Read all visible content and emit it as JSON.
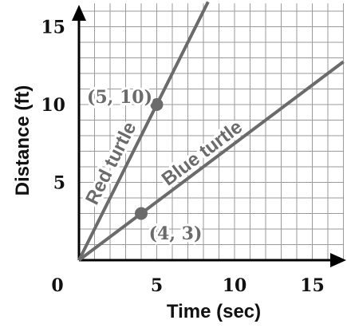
{
  "chart_data": {
    "type": "line",
    "xlabel": "Time (sec)",
    "ylabel": "Distance (ft)",
    "xlim": [
      0,
      17
    ],
    "ylim": [
      0,
      16.5
    ],
    "x_ticks": [
      0,
      5,
      10,
      15
    ],
    "x_tick_labels": [
      "0",
      "5",
      "10",
      "15"
    ],
    "y_ticks": [
      5,
      10,
      15
    ],
    "y_tick_labels": [
      "5",
      "10",
      "15"
    ],
    "grid": true,
    "grid_step": 1,
    "series": [
      {
        "name": "Red turtle",
        "x": [
          0,
          8.3
        ],
        "y": [
          0,
          16.6
        ],
        "color": "#6b6b6b"
      },
      {
        "name": "Blue turtle",
        "x": [
          0,
          17
        ],
        "y": [
          0,
          12.75
        ],
        "color": "#6b6b6b"
      }
    ],
    "points": [
      {
        "x": 5,
        "y": 10,
        "label": "(5, 10)"
      },
      {
        "x": 4,
        "y": 3,
        "label": "(4, 3)"
      }
    ]
  }
}
